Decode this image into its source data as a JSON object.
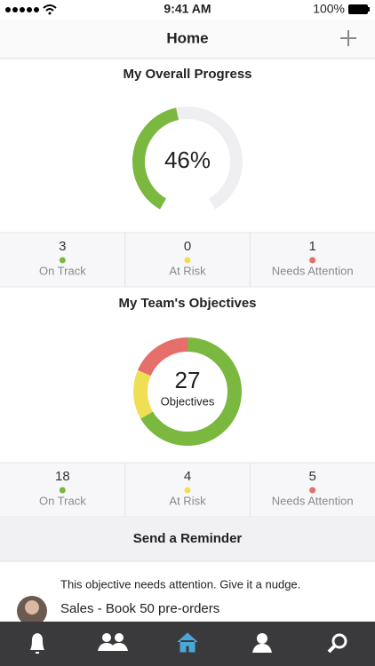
{
  "status_bar": {
    "time": "9:41 AM",
    "battery": "100%"
  },
  "header": {
    "title": "Home"
  },
  "overall_progress": {
    "title": "My Overall Progress",
    "percent": {
      "value": 46,
      "label": "46%"
    },
    "stats": [
      {
        "count": 3,
        "label": "On Track"
      },
      {
        "count": 0,
        "label": "At Risk"
      },
      {
        "count": 1,
        "label": "Needs Attention"
      }
    ]
  },
  "team_objectives": {
    "title": "My Team's Objectives",
    "total": 27,
    "total_label": "Objectives",
    "stats": [
      {
        "count": 18,
        "label": "On Track"
      },
      {
        "count": 4,
        "label": "At Risk"
      },
      {
        "count": 5,
        "label": "Needs Attention"
      }
    ]
  },
  "reminder_button": "Send a Reminder",
  "nudge": {
    "hint": "This objective needs attention. Give it a nudge.",
    "objective": "Sales - Book 50 pre-orders"
  }
}
